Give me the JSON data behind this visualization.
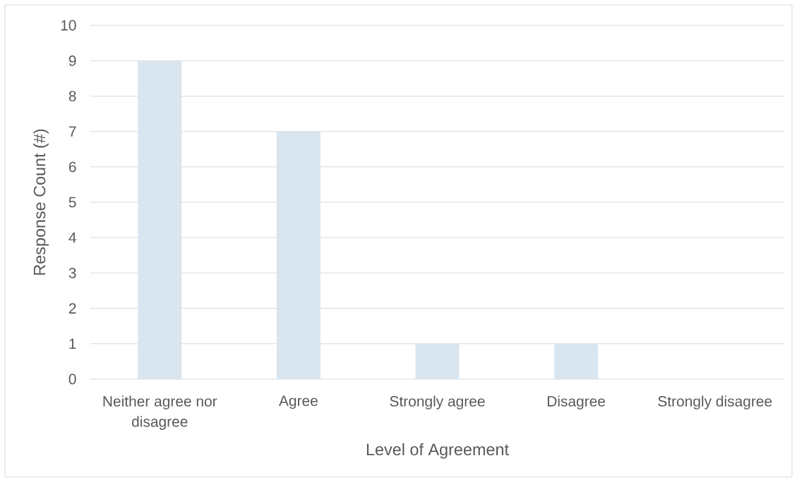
{
  "chart_data": {
    "type": "bar",
    "xlabel": "Level of Agreement",
    "ylabel": "Response Count (#)",
    "categories": [
      "Neither agree nor disagree",
      "Agree",
      "Strongly agree",
      "Disagree",
      "Strongly disagree"
    ],
    "values": [
      9,
      7,
      1,
      1,
      0
    ],
    "color": "#d9e5ef",
    "ylim": [
      0,
      10
    ],
    "yticks": [
      0,
      1,
      2,
      3,
      4,
      5,
      6,
      7,
      8,
      9,
      10
    ],
    "grid": "y"
  }
}
